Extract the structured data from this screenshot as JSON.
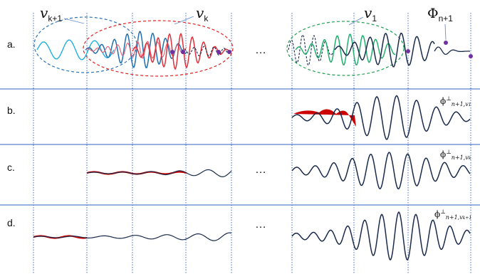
{
  "rows": {
    "a": "a.",
    "b": "b.",
    "c": "c.",
    "d": "d."
  },
  "labels": {
    "v_k1": {
      "base": "v",
      "sub": "k+1"
    },
    "v_k": {
      "base": "v",
      "sub": "k"
    },
    "v_1": {
      "base": "v",
      "sub": "1"
    },
    "phi_n1": {
      "base": "Φ",
      "sub": "n+1"
    }
  },
  "side_labels": {
    "b": {
      "base": "ϕ",
      "sup": "⊥",
      "sub": "n+1,v",
      "subsub": "1"
    },
    "c": {
      "base": "ϕ",
      "sup": "⊥",
      "sub": "n+1,v",
      "subsub": "k"
    },
    "d": {
      "base": "ϕ",
      "sup": "⊥",
      "sub": "n+1,v",
      "subsub": "k+1"
    }
  },
  "ellipsis": "…",
  "colors": {
    "blue_ellipse": "#2e75b6",
    "red_ellipse": "#e02020",
    "green_ellipse": "#22a050",
    "wave_cyan": "#1fb0e0",
    "wave_blue": "#1f6fb0",
    "wave_red": "#e0303a",
    "wave_pink": "#e06070",
    "wave_green": "#22b070",
    "wave_dark": "#1a2a4a",
    "purple_dot": "#7030a0",
    "fill_red": "#cc0000",
    "grid_blue": "#3060c0"
  }
}
